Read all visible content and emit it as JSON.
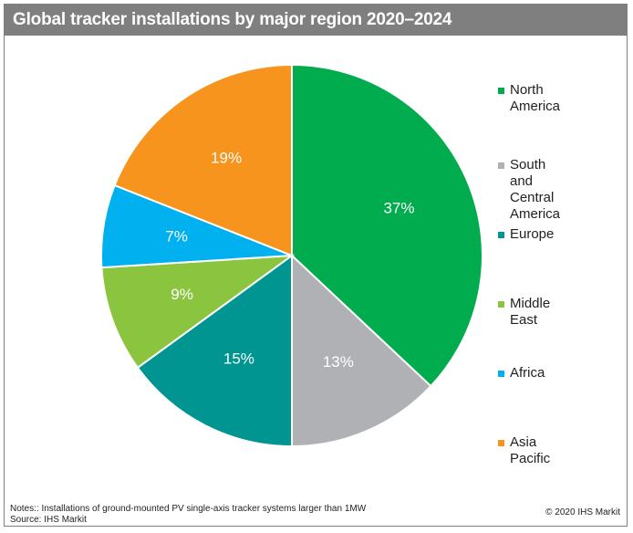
{
  "title": "Global tracker installations by major region 2020–2024",
  "chart_data": {
    "type": "pie",
    "start_angle_deg": 0,
    "direction": "clockwise",
    "slices": [
      {
        "name": "North America",
        "value": 37,
        "label": "37%",
        "color": "#00ac4e"
      },
      {
        "name": "South and Central America",
        "value": 13,
        "label": "13%",
        "color": "#b0b1b4"
      },
      {
        "name": "Europe",
        "value": 15,
        "label": "15%",
        "color": "#009591"
      },
      {
        "name": "Middle East",
        "value": 9,
        "label": "9%",
        "color": "#8bc53f"
      },
      {
        "name": "Africa",
        "value": 7,
        "label": "7%",
        "color": "#00b0ef"
      },
      {
        "name": "Asia Pacific",
        "value": 19,
        "label": "19%",
        "color": "#f7941d"
      }
    ],
    "legend_position": "right"
  },
  "legend": [
    {
      "label": "North America",
      "color": "#00ac4e"
    },
    {
      "label": "South and\nCentral America",
      "color": "#b0b1b4"
    },
    {
      "label": "Europe",
      "color": "#009591"
    },
    {
      "label": "Middle East",
      "color": "#8bc53f"
    },
    {
      "label": "Africa",
      "color": "#00b0ef"
    },
    {
      "label": "Asia Pacific",
      "color": "#f7941d"
    }
  ],
  "footer": {
    "notes": "Notes:: Installations of ground-mounted PV single-axis tracker systems larger than 1MW",
    "source": "Source: IHS Markit",
    "copyright": "© 2020 IHS Markit"
  }
}
